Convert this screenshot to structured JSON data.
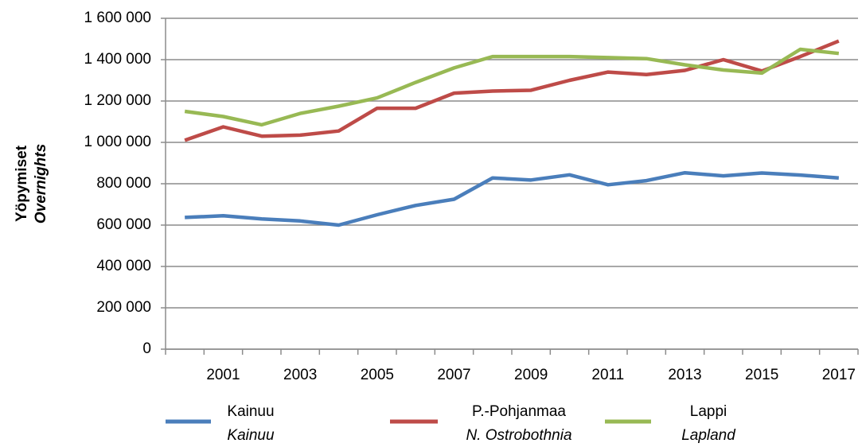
{
  "chart_data": {
    "type": "line",
    "ylabel": "Yöpymiset",
    "ylabel_en": "Overnights",
    "categories": [
      null,
      "2001",
      null,
      "2003",
      null,
      "2005",
      null,
      "2007",
      null,
      "2009",
      null,
      "2011",
      null,
      "2013",
      null,
      "2015",
      null,
      "2017"
    ],
    "series": [
      {
        "name": "Kainuu",
        "name_en": "Kainuu",
        "color": "#4a7ebb",
        "values": [
          637000,
          645000,
          630000,
          620000,
          600000,
          650000,
          695000,
          725000,
          828000,
          818000,
          843000,
          795000,
          815000,
          853000,
          838000,
          852000,
          842000,
          828000
        ]
      },
      {
        "name": "P.-Pohjanmaa",
        "name_en": "N. Ostrobothnia",
        "color": "#be4b48",
        "values": [
          1010000,
          1075000,
          1030000,
          1035000,
          1055000,
          1165000,
          1165000,
          1238000,
          1248000,
          1252000,
          1300000,
          1340000,
          1328000,
          1348000,
          1400000,
          1345000,
          1415000,
          1490000
        ]
      },
      {
        "name": "Lappi",
        "name_en": "Lapland",
        "color": "#98b954",
        "values": [
          1150000,
          1125000,
          1085000,
          1140000,
          1175000,
          1215000,
          1290000,
          1360000,
          1415000,
          1415000,
          1415000,
          1410000,
          1405000,
          1375000,
          1350000,
          1335000,
          1450000,
          1430000
        ]
      }
    ],
    "ylim": [
      0,
      1600000
    ],
    "yticks": [
      0,
      {
        "value": 200000,
        "label": "200 000"
      },
      {
        "value": 400000,
        "label": "400 000"
      },
      {
        "value": 600000,
        "label": "600 000"
      },
      {
        "value": 800000,
        "label": "800 000"
      },
      {
        "value": 1000000,
        "label": "1 000 000"
      },
      {
        "value": 1200000,
        "label": "1 200 000"
      },
      {
        "value": 1400000,
        "label": "1 400 000"
      },
      {
        "value": 1600000,
        "label": "1 600 000"
      }
    ],
    "grid": true,
    "legend": "bottom"
  }
}
